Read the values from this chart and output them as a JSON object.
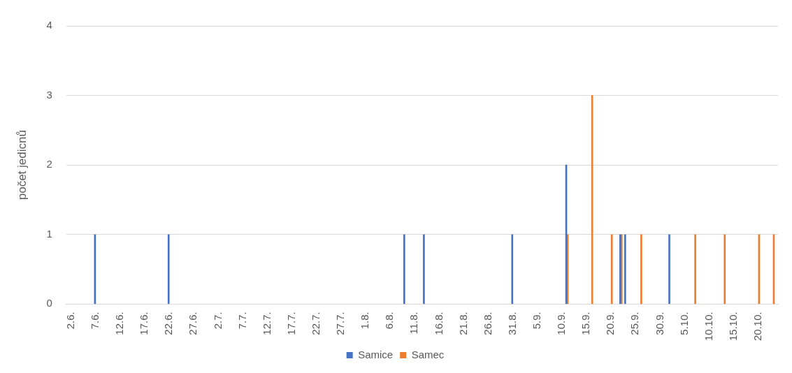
{
  "chart_data": {
    "type": "bar",
    "ylabel": "počet jedicnů",
    "xlim": [
      "--06-01",
      "--10-24"
    ],
    "xticks": [
      {
        "value": "--06-02",
        "label": "2.6."
      },
      {
        "value": "--06-07",
        "label": "7.6."
      },
      {
        "value": "--06-12",
        "label": "12.6."
      },
      {
        "value": "--06-17",
        "label": "17.6."
      },
      {
        "value": "--06-22",
        "label": "22.6."
      },
      {
        "value": "--06-27",
        "label": "27.6."
      },
      {
        "value": "--07-02",
        "label": "2.7."
      },
      {
        "value": "--07-07",
        "label": "7.7."
      },
      {
        "value": "--07-12",
        "label": "12.7."
      },
      {
        "value": "--07-17",
        "label": "17.7."
      },
      {
        "value": "--07-22",
        "label": "22.7."
      },
      {
        "value": "--07-27",
        "label": "27.7."
      },
      {
        "value": "--08-01",
        "label": "1.8."
      },
      {
        "value": "--08-06",
        "label": "6.8."
      },
      {
        "value": "--08-11",
        "label": "11.8."
      },
      {
        "value": "--08-16",
        "label": "16.8."
      },
      {
        "value": "--08-21",
        "label": "21.8."
      },
      {
        "value": "--08-26",
        "label": "26.8."
      },
      {
        "value": "--08-31",
        "label": "31.8."
      },
      {
        "value": "--09-05",
        "label": "5.9."
      },
      {
        "value": "--09-10",
        "label": "10.9."
      },
      {
        "value": "--09-15",
        "label": "15.9."
      },
      {
        "value": "--09-20",
        "label": "20.9."
      },
      {
        "value": "--09-25",
        "label": "25.9."
      },
      {
        "value": "--09-30",
        "label": "30.9."
      },
      {
        "value": "--10-05",
        "label": "5.10."
      },
      {
        "value": "--10-10",
        "label": "10.10."
      },
      {
        "value": "--10-15",
        "label": "15.10."
      },
      {
        "value": "--10-20",
        "label": "20.10."
      }
    ],
    "ylim": [
      0,
      4
    ],
    "yticks": [
      0,
      1,
      2,
      3,
      4
    ],
    "grid": "y",
    "legend": "bottom",
    "series": [
      {
        "name": "Samice",
        "color": "#4472c4",
        "x": [
          "--06-07",
          "--06-22",
          "--08-09",
          "--08-13",
          "--08-31",
          "--09-11",
          "--09-22",
          "--09-23",
          "--10-02"
        ],
        "values": [
          1,
          1,
          1,
          1,
          1,
          2,
          1,
          1,
          1
        ]
      },
      {
        "name": "Samec",
        "color": "#ed7d31",
        "x": [
          "--09-11",
          "--09-16",
          "--09-20",
          "--09-22",
          "--09-26",
          "--10-07",
          "--10-13",
          "--10-20",
          "--10-23"
        ],
        "values": [
          1,
          3,
          1,
          1,
          1,
          1,
          1,
          1,
          1
        ]
      }
    ]
  }
}
